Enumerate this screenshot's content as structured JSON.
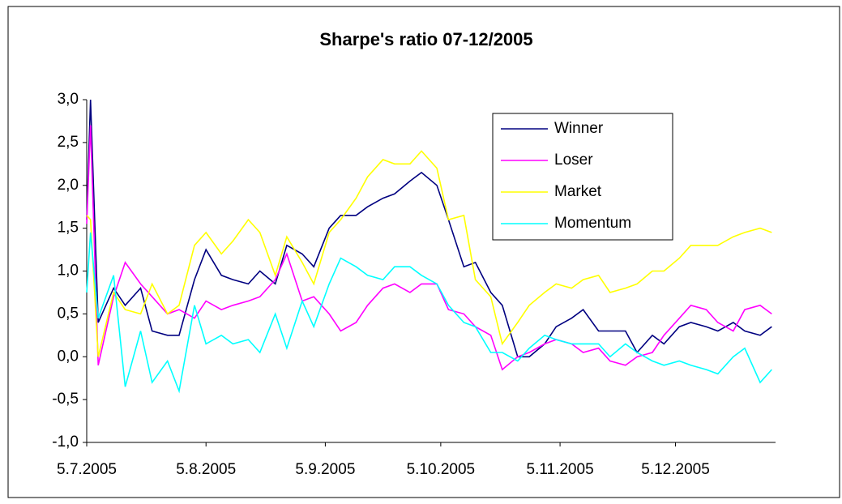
{
  "chart_data": {
    "type": "line",
    "title": "Sharpe's ratio 07-12/2005",
    "x": [
      "2005-07-05",
      "2005-07-06",
      "2005-07-08",
      "2005-07-12",
      "2005-07-15",
      "2005-07-19",
      "2005-07-22",
      "2005-07-26",
      "2005-07-29",
      "2005-08-02",
      "2005-08-05",
      "2005-08-09",
      "2005-08-12",
      "2005-08-16",
      "2005-08-19",
      "2005-08-23",
      "2005-08-26",
      "2005-08-30",
      "2005-09-02",
      "2005-09-06",
      "2005-09-09",
      "2005-09-13",
      "2005-09-16",
      "2005-09-20",
      "2005-09-23",
      "2005-09-27",
      "2005-09-30",
      "2005-10-04",
      "2005-10-07",
      "2005-10-11",
      "2005-10-14",
      "2005-10-18",
      "2005-10-21",
      "2005-10-25",
      "2005-10-28",
      "2005-11-01",
      "2005-11-04",
      "2005-11-08",
      "2005-11-11",
      "2005-11-15",
      "2005-11-18",
      "2005-11-22",
      "2005-11-25",
      "2005-11-29",
      "2005-12-02",
      "2005-12-06",
      "2005-12-09",
      "2005-12-13",
      "2005-12-16",
      "2005-12-20",
      "2005-12-23",
      "2005-12-27",
      "2005-12-30"
    ],
    "series": [
      {
        "name": "Winner",
        "color": "#000080",
        "values": [
          1.6,
          3.0,
          0.4,
          0.8,
          0.6,
          0.8,
          0.3,
          0.25,
          0.25,
          0.9,
          1.25,
          0.95,
          0.9,
          0.85,
          1.0,
          0.85,
          1.3,
          1.2,
          1.05,
          1.5,
          1.65,
          1.65,
          1.75,
          1.85,
          1.9,
          2.05,
          2.15,
          2.0,
          1.6,
          1.05,
          1.1,
          0.75,
          0.6,
          0.0,
          0.0,
          0.15,
          0.35,
          0.45,
          0.55,
          0.3,
          0.3,
          0.3,
          0.05,
          0.25,
          0.15,
          0.35,
          0.4,
          0.35,
          0.3,
          0.4,
          0.3,
          0.25,
          0.35
        ]
      },
      {
        "name": "Loser",
        "color": "#ff00ff",
        "values": [
          1.55,
          2.7,
          -0.1,
          0.7,
          1.1,
          0.85,
          0.7,
          0.5,
          0.55,
          0.45,
          0.65,
          0.55,
          0.6,
          0.65,
          0.7,
          0.9,
          1.2,
          0.65,
          0.7,
          0.5,
          0.3,
          0.4,
          0.6,
          0.8,
          0.85,
          0.75,
          0.85,
          0.85,
          0.55,
          0.5,
          0.35,
          0.25,
          -0.15,
          0.0,
          0.05,
          0.15,
          0.2,
          0.15,
          0.05,
          0.1,
          -0.05,
          -0.1,
          0.0,
          0.05,
          0.25,
          0.45,
          0.6,
          0.55,
          0.4,
          0.3,
          0.55,
          0.6,
          0.5
        ]
      },
      {
        "name": "Market",
        "color": "#ffff00",
        "values": [
          1.65,
          1.6,
          0.0,
          0.75,
          0.55,
          0.5,
          0.85,
          0.5,
          0.6,
          1.3,
          1.45,
          1.2,
          1.35,
          1.6,
          1.45,
          0.95,
          1.4,
          1.1,
          0.85,
          1.45,
          1.6,
          1.85,
          2.1,
          2.3,
          2.25,
          2.25,
          2.4,
          2.2,
          1.6,
          1.65,
          0.9,
          0.7,
          0.15,
          0.4,
          0.6,
          0.75,
          0.85,
          0.8,
          0.9,
          0.95,
          0.75,
          0.8,
          0.85,
          1.0,
          1.0,
          1.15,
          1.3,
          1.3,
          1.3,
          1.4,
          1.45,
          1.5,
          1.45
        ]
      },
      {
        "name": "Momentum",
        "color": "#00ffff",
        "values": [
          0.75,
          1.45,
          0.45,
          0.95,
          -0.35,
          0.3,
          -0.3,
          -0.05,
          -0.4,
          0.6,
          0.15,
          0.25,
          0.15,
          0.2,
          0.05,
          0.5,
          0.1,
          0.65,
          0.35,
          0.85,
          1.15,
          1.05,
          0.95,
          0.9,
          1.05,
          1.05,
          0.95,
          0.85,
          0.6,
          0.4,
          0.35,
          0.05,
          0.05,
          -0.05,
          0.1,
          0.25,
          0.2,
          0.15,
          0.15,
          0.15,
          0.0,
          0.15,
          0.05,
          -0.05,
          -0.1,
          -0.05,
          -0.1,
          -0.15,
          -0.2,
          0.0,
          0.1,
          -0.3,
          -0.15
        ]
      }
    ],
    "xlim": [
      "2005-07-05",
      "2005-12-31"
    ],
    "xticks": [
      {
        "value": "2005-07-05",
        "label": "5.7.2005"
      },
      {
        "value": "2005-08-05",
        "label": "5.8.2005"
      },
      {
        "value": "2005-09-05",
        "label": "5.9.2005"
      },
      {
        "value": "2005-10-05",
        "label": "5.10.2005"
      },
      {
        "value": "2005-11-05",
        "label": "5.11.2005"
      },
      {
        "value": "2005-12-05",
        "label": "5.12.2005"
      }
    ],
    "ylim": [
      -1.0,
      3.0
    ],
    "yticks": [
      {
        "value": -1.0,
        "label": "-1,0"
      },
      {
        "value": -0.5,
        "label": "-0,5"
      },
      {
        "value": 0.0,
        "label": "0,0"
      },
      {
        "value": 0.5,
        "label": "0,5"
      },
      {
        "value": 1.0,
        "label": "1,0"
      },
      {
        "value": 1.5,
        "label": "1,5"
      },
      {
        "value": 2.0,
        "label": "2,0"
      },
      {
        "value": 2.5,
        "label": "2,5"
      },
      {
        "value": 3.0,
        "label": "3,0"
      }
    ],
    "legend": "upper right"
  }
}
